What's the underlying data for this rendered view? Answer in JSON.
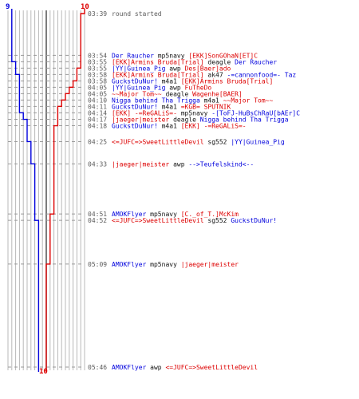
{
  "chart_data": {
    "type": "line",
    "title": "",
    "team_colors": {
      "blue": "#0000dd",
      "red": "#dd0000",
      "neutral": "#111111"
    },
    "teams": [
      {
        "name": "blue",
        "start_count": "9",
        "end_count": ""
      },
      {
        "name": "red",
        "start_count": "10",
        "end_count": "10"
      }
    ],
    "events": [
      {
        "time": "03:39",
        "note": "round started",
        "parts": []
      },
      {
        "time": "03:54",
        "parts": [
          {
            "text": "Der Raucher",
            "team": "blue"
          },
          {
            "text": " mp5navy ",
            "team": "neutral"
          },
          {
            "text": "[EKK]SonGOhaN[ET]C",
            "team": "red"
          }
        ]
      },
      {
        "time": "03:55",
        "parts": [
          {
            "text": "[EKK]Armins Bruda[Trial]",
            "team": "red"
          },
          {
            "text": " deagle ",
            "team": "neutral"
          },
          {
            "text": "Der Raucher",
            "team": "blue"
          }
        ]
      },
      {
        "time": "03:55",
        "parts": [
          {
            "text": "|YY|Guinea_Pig",
            "team": "blue"
          },
          {
            "text": " awp ",
            "team": "neutral"
          },
          {
            "text": "Des[Baer]ado",
            "team": "red"
          }
        ]
      },
      {
        "time": "03:58",
        "parts": [
          {
            "text": "[EKK]Armins Bruda[Trial]",
            "team": "red"
          },
          {
            "text": " ak47 ",
            "team": "neutral"
          },
          {
            "text": "-=cannonfood=- Taz",
            "team": "blue"
          }
        ]
      },
      {
        "time": "03:58",
        "parts": [
          {
            "text": "GuckstDuNur!",
            "team": "blue"
          },
          {
            "text": " m4a1 ",
            "team": "neutral"
          },
          {
            "text": "[EKK]Armins Bruda[Trial]",
            "team": "red"
          }
        ]
      },
      {
        "time": "04:05",
        "parts": [
          {
            "text": "|YY|Guinea_Pig",
            "team": "blue"
          },
          {
            "text": " awp ",
            "team": "neutral"
          },
          {
            "text": "FuTheDo",
            "team": "red"
          }
        ]
      },
      {
        "time": "04:05",
        "parts": [
          {
            "text": "~~Major Tom~~",
            "team": "red"
          },
          {
            "text": " deagle ",
            "team": "neutral"
          },
          {
            "text": "Wagenhe[BAER]",
            "team": "red"
          }
        ]
      },
      {
        "time": "04:10",
        "parts": [
          {
            "text": "Nigga behind Tha Trigga",
            "team": "blue"
          },
          {
            "text": " m4a1 ",
            "team": "neutral"
          },
          {
            "text": "~~Major Tom~~",
            "team": "red"
          }
        ]
      },
      {
        "time": "04:11",
        "parts": [
          {
            "text": "GuckstDuNur!",
            "team": "blue"
          },
          {
            "text": " m4a1 ",
            "team": "neutral"
          },
          {
            "text": "=KGB= SPUTNIK",
            "team": "red"
          }
        ]
      },
      {
        "time": "04:14",
        "parts": [
          {
            "text": "[EKK] -=ReGALiS=-",
            "team": "red"
          },
          {
            "text": " mp5navy ",
            "team": "neutral"
          },
          {
            "text": "-[ToFJ-HuBsChRaU[bAEr]C",
            "team": "blue"
          }
        ]
      },
      {
        "time": "04:17",
        "parts": [
          {
            "text": "|jaeger|meister",
            "team": "red"
          },
          {
            "text": " deagle ",
            "team": "neutral"
          },
          {
            "text": "Nigga behind Tha Trigga",
            "team": "blue"
          }
        ]
      },
      {
        "time": "04:18",
        "parts": [
          {
            "text": "GuckstDuNur!",
            "team": "blue"
          },
          {
            "text": " m4a1 ",
            "team": "neutral"
          },
          {
            "text": "[EKK] -=ReGALiS=-",
            "team": "red"
          }
        ]
      },
      {
        "time": "04:25",
        "parts": [
          {
            "text": "<=JUFC=>SweetLittleDevil",
            "team": "red"
          },
          {
            "text": " sg552 ",
            "team": "neutral"
          },
          {
            "text": "|YY|Guinea_Pig",
            "team": "blue"
          }
        ]
      },
      {
        "time": "04:33",
        "parts": [
          {
            "text": "|jaeger|meister",
            "team": "red"
          },
          {
            "text": " awp ",
            "team": "neutral"
          },
          {
            "text": "-->Teufelskind<--",
            "team": "blue"
          }
        ]
      },
      {
        "time": "04:51",
        "parts": [
          {
            "text": "AMOKFlyer",
            "team": "blue"
          },
          {
            "text": " mp5navy ",
            "team": "neutral"
          },
          {
            "text": "[C._of_T.]McKim",
            "team": "red"
          }
        ]
      },
      {
        "time": "04:52",
        "parts": [
          {
            "text": "<=JUFC=>SweetLittleDevil",
            "team": "red"
          },
          {
            "text": " sg552 ",
            "team": "neutral"
          },
          {
            "text": "GuckstDuNur!",
            "team": "blue"
          }
        ]
      },
      {
        "time": "05:09",
        "parts": [
          {
            "text": "AMOKFlyer",
            "team": "blue"
          },
          {
            "text": " mp5navy ",
            "team": "neutral"
          },
          {
            "text": "|jaeger|meister",
            "team": "red"
          }
        ]
      },
      {
        "time": "05:46",
        "parts": [
          {
            "text": "AMOKFlyer",
            "team": "blue"
          },
          {
            "text": " awp ",
            "team": "neutral"
          },
          {
            "text": "<=JUFC=>SweetLittleDevil",
            "team": "red"
          }
        ]
      }
    ]
  }
}
